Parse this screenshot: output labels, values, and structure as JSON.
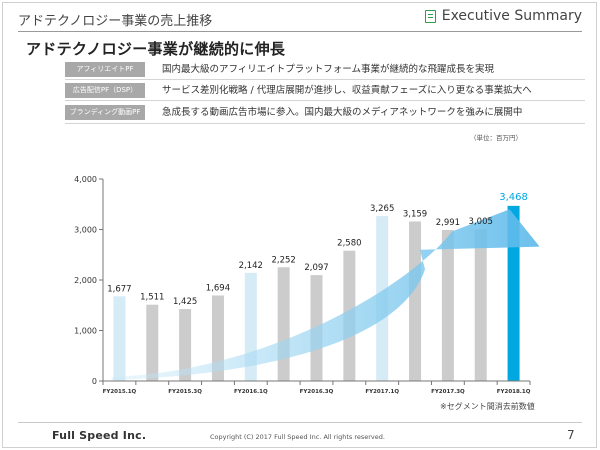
{
  "header": {
    "title": "アドテクノロジー事業の売上推移",
    "right_label": "Executive Summary",
    "icon": "checklist-icon"
  },
  "main_title": "アドテクノロジー事業が継続的に伸長",
  "rows": [
    {
      "label": "アフィリエイトPF",
      "text": "国内最大級のアフィリエイトプラットフォーム事業が継続的な飛躍成長を実現"
    },
    {
      "label": "広告配信PF（DSP）",
      "text": "サービス差別化戦略 / 代理店展開が進捗し、収益貢献フェーズに入り更なる事業拡大へ"
    },
    {
      "label": "ブランディング動画PF",
      "text": "急成長する動画広告市場に参入。国内最大級のメディアネットワークを強みに展開中"
    }
  ],
  "unit_note": "（単位：百万円）",
  "chart_data": {
    "type": "bar",
    "categories": [
      "FY2015.1Q",
      "FY2015.2Q",
      "FY2015.3Q",
      "FY2015.4Q",
      "FY2016.1Q",
      "FY2016.2Q",
      "FY2016.3Q",
      "FY2016.4Q",
      "FY2017.1Q",
      "FY2017.2Q",
      "FY2017.3Q",
      "FY2017.4Q",
      "FY2018.1Q"
    ],
    "x_tick_labels": [
      "FY2015.1Q",
      "",
      "FY2015.3Q",
      "",
      "FY2016.1Q",
      "",
      "FY2016.3Q",
      "",
      "FY2017.1Q",
      "",
      "FY2017.3Q",
      "",
      "FY2018.1Q"
    ],
    "values": [
      1677,
      1511,
      1425,
      1694,
      2142,
      2252,
      2097,
      2580,
      3265,
      3159,
      2991,
      3005,
      3468
    ],
    "value_labels": [
      "1,677",
      "1,511",
      "1,425",
      "1,694",
      "2,142",
      "2,252",
      "2,097",
      "2,580",
      "3,265",
      "3,159",
      "2,991",
      "3,005",
      "3,468"
    ],
    "y_tick_labels": [
      "0",
      "1,000",
      "2,000",
      "3,000",
      "4,000"
    ],
    "ylim": [
      0,
      4000
    ],
    "ytick_step": 1000,
    "highlight_index": 12,
    "first_quarter_indices": [
      0,
      4,
      8
    ],
    "colors": {
      "bar_default": "#cccccc",
      "bar_q1": "#d5ebf6",
      "bar_highlight": "#00a7e1",
      "highlight_label": "#00a7e1",
      "arrow": "#7fc8ee"
    },
    "title": "",
    "xlabel": "",
    "ylabel": ""
  },
  "footnote": "※セグメント間消去前数値",
  "footer": {
    "logo": "Full Speed Inc.",
    "copyright": "Copyright (C) 2017 Full Speed Inc. All rights reserved.",
    "page": "7"
  }
}
